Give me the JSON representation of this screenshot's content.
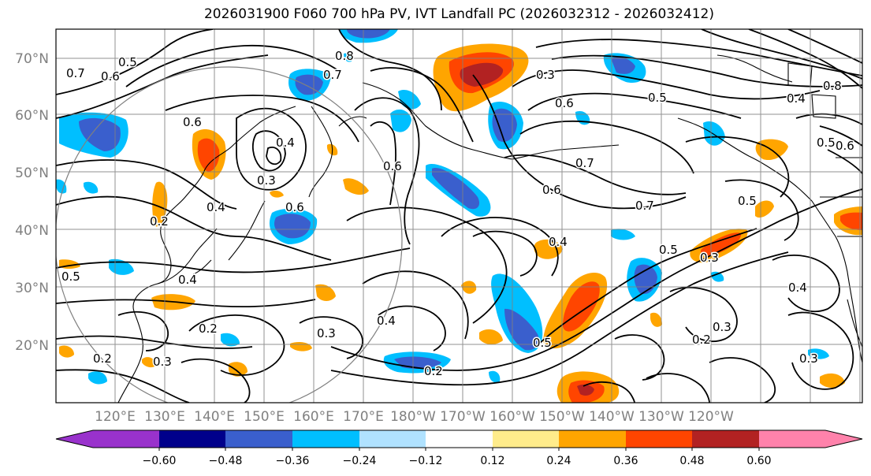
{
  "title": "2026031900 F060 700 hPa PV, IVT Landfall PC (2026032312 - 2026032412)",
  "lat_labels": [
    "70°N",
    "60°N",
    "50°N",
    "40°N",
    "30°N",
    "20°N"
  ],
  "lon_labels": [
    "120°E",
    "130°E",
    "140°E",
    "150°E",
    "160°E",
    "170°E",
    "180°W",
    "170°W",
    "160°W",
    "150°W",
    "140°W",
    "130°W",
    "120°W"
  ],
  "colorbar": {
    "colors": [
      "#9932cc",
      "#00008b",
      "#3a5fcd",
      "#00bfff",
      "#b0e2ff",
      "#ffffff",
      "#ffec8b",
      "#ffa500",
      "#ff4500",
      "#b22222",
      "#ff82ab"
    ],
    "tick_labels": [
      "−0.60",
      "−0.48",
      "−0.36",
      "−0.24",
      "−0.12",
      "0.12",
      "0.24",
      "0.36",
      "0.48",
      "0.60"
    ]
  },
  "contour_labels": [
    "0.7",
    "0.5",
    "0.6",
    "0.8",
    "0.7",
    "0.6",
    "0.4",
    "0.3",
    "0.3",
    "0.5",
    "0.6",
    "0.7",
    "0.7",
    "0.6",
    "0.5",
    "0.4",
    "0.4",
    "0.2",
    "0.4",
    "0.2",
    "0.3",
    "0.2",
    "0.4",
    "0.2",
    "0.5",
    "0.6",
    "0.4",
    "0.3",
    "0.6",
    "0.5",
    "0.3",
    "0.8",
    "0.6",
    "0.5",
    "0.4",
    "0.3",
    "0.2",
    "0.3",
    "0.5"
  ]
}
